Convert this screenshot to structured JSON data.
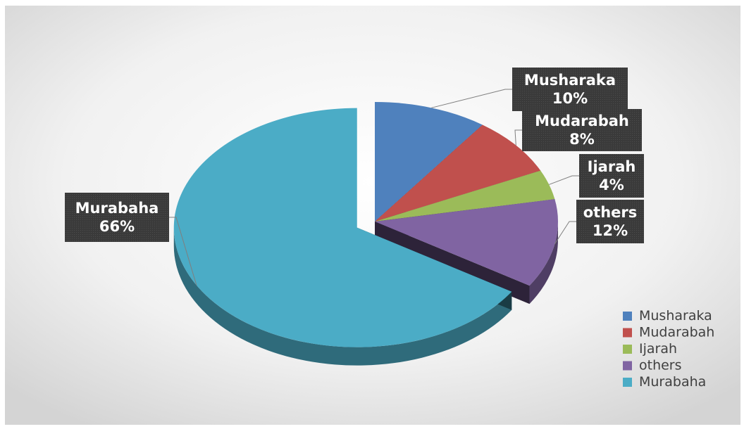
{
  "chart_data": {
    "type": "pie",
    "title": "",
    "legend_position": "bottom-right",
    "label_style": "callout boxes with name and percentage",
    "slices": [
      {
        "name": "Musharaka",
        "value": 10,
        "label": "10%",
        "color": "#4F81BD"
      },
      {
        "name": "Mudarabah",
        "value": 8,
        "label": "8%",
        "color": "#C0504D"
      },
      {
        "name": "Ijarah",
        "value": 4,
        "label": "4%",
        "color": "#9BBB59"
      },
      {
        "name": "others",
        "value": 12,
        "label": "12%",
        "color": "#8064A2"
      },
      {
        "name": "Murabaha",
        "value": 66,
        "label": "66%",
        "color": "#4BACC6"
      }
    ]
  }
}
